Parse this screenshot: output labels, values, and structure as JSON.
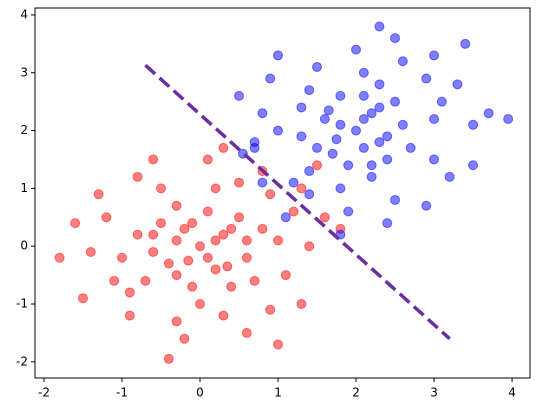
{
  "chart_data": {
    "type": "scatter",
    "xlim": [
      -2.115,
      4.23
    ],
    "ylim": [
      -2.28,
      4.12
    ],
    "xticks": [
      -2,
      -1,
      0,
      1,
      2,
      3,
      4
    ],
    "yticks": [
      -2,
      -1,
      0,
      1,
      2,
      3,
      4
    ],
    "grid": false,
    "series": [
      {
        "color": "#ff0000",
        "x": [
          0,
          0.3,
          -0.3,
          0.2,
          -0.4,
          0.5,
          -0.5,
          0.6,
          -0.6,
          0.1,
          -0.1,
          0.4,
          -0.3,
          0.8,
          -0.8,
          0.7,
          -0.7,
          0.9,
          -0.9,
          1.0,
          -1.0,
          0.2,
          0.0,
          -0.5,
          0.5,
          1.2,
          -1.2,
          1.1,
          -1.1,
          0.3,
          -0.3,
          1.4,
          -1.4,
          0.8,
          -0.8,
          1.3,
          -1.3,
          0.9,
          -0.9,
          1.6,
          -1.6,
          0.1,
          -0.2,
          1.8,
          -1.8,
          0.3,
          1.3,
          -1.5,
          0.6,
          -0.4,
          -0.6,
          1.5,
          1.0,
          0.4,
          -0.2,
          0.1,
          -0.1,
          0.2,
          -0.3,
          0.6,
          -0.6,
          0.35,
          -0.15
        ],
        "values": [
          0,
          0.2,
          0.1,
          -0.4,
          -0.3,
          0.5,
          0.4,
          -0.2,
          -0.1,
          0.6,
          -0.7,
          -0.7,
          0.7,
          0.3,
          0.2,
          -0.6,
          -0.6,
          0.9,
          -0.8,
          0.1,
          -0.2,
          1.0,
          -1.0,
          1.0,
          1.1,
          0.6,
          0.5,
          -0.5,
          -0.6,
          -1.2,
          -1.3,
          0.0,
          -0.1,
          1.3,
          1.2,
          1.0,
          0.9,
          -1.1,
          -1.2,
          0.5,
          0.4,
          1.5,
          -1.6,
          0.3,
          -0.2,
          1.7,
          -1.0,
          -0.9,
          -1.5,
          -1.95,
          1.5,
          1.4,
          -1.7,
          0.3,
          0.3,
          -0.2,
          0.4,
          0.1,
          -0.5,
          0.1,
          0.2,
          -0.35,
          -0.25
        ]
      },
      {
        "color": "#0000ff",
        "x": [
          2,
          2.2,
          2.1,
          1.6,
          1.7,
          2.5,
          2.4,
          1.8,
          1.9,
          2.6,
          1.3,
          1.3,
          2.7,
          2.3,
          2.2,
          1.4,
          1.4,
          2.9,
          1.2,
          2.1,
          1.8,
          3.0,
          1.0,
          3.0,
          3.1,
          2.6,
          2.5,
          1.5,
          1.4,
          0.8,
          0.7,
          2.0,
          1.9,
          3.3,
          3.2,
          3.0,
          2.9,
          0.9,
          0.8,
          2.5,
          2.4,
          3.5,
          0.7,
          2.3,
          1.8,
          3.7,
          1.0,
          1.1,
          0.5,
          0.55,
          3.5,
          3.4,
          3.95,
          2.3,
          2.3,
          1.8,
          2.4,
          2.1,
          1.5,
          2.1,
          2.2,
          1.65,
          1.75
        ],
        "values": [
          2,
          2.3,
          1.7,
          2.2,
          1.6,
          2.5,
          1.5,
          2.6,
          1.4,
          2.1,
          1.9,
          2.4,
          1.7,
          2.8,
          1.2,
          2.7,
          1.3,
          2.9,
          1.1,
          3.0,
          1.0,
          2.2,
          2.0,
          1.5,
          2.5,
          3.2,
          0.8,
          3.1,
          0.9,
          2.3,
          1.7,
          3.4,
          0.6,
          2.8,
          1.2,
          3.3,
          0.7,
          2.9,
          1.1,
          3.6,
          0.4,
          2.1,
          1.8,
          3.8,
          0.2,
          2.3,
          3.3,
          0.5,
          2.6,
          1.6,
          1.4,
          3.5,
          2.2,
          2.4,
          1.8,
          2.1,
          1.9,
          2.2,
          1.7,
          2.6,
          1.4,
          2.35,
          1.85
        ]
      }
    ],
    "line": {
      "x": [
        -0.7,
        3.2
      ],
      "values": [
        3.13,
        -1.6
      ],
      "color": "#6a2fa0",
      "style": "dashed"
    }
  }
}
